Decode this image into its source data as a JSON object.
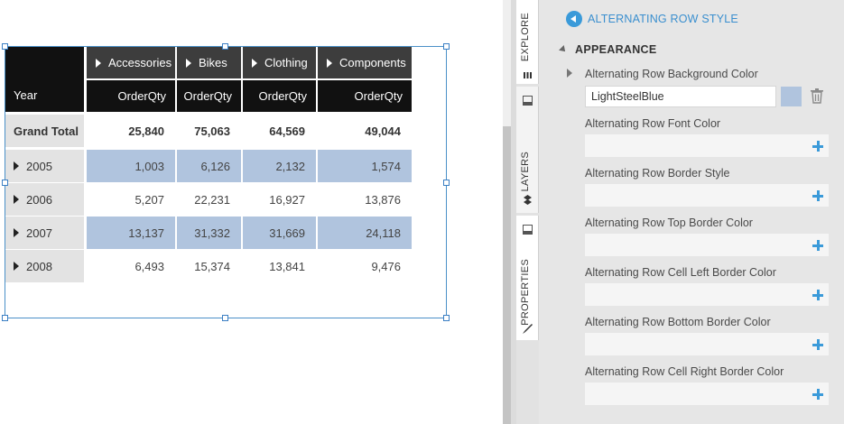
{
  "pivot": {
    "corner_label": "Year",
    "columns": [
      {
        "header": "Accessories",
        "measure": "OrderQty"
      },
      {
        "header": "Bikes",
        "measure": "OrderQty"
      },
      {
        "header": "Clothing",
        "measure": "OrderQty"
      },
      {
        "header": "Components",
        "measure": "OrderQty"
      }
    ],
    "rows": [
      {
        "label": "Grand Total",
        "values": [
          "25,840",
          "75,063",
          "64,569",
          "49,044"
        ],
        "bold": true,
        "alternate": false
      },
      {
        "label": "2005",
        "values": [
          "1,003",
          "6,126",
          "2,132",
          "1,574"
        ],
        "bold": false,
        "alternate": true
      },
      {
        "label": "2006",
        "values": [
          "5,207",
          "22,231",
          "16,927",
          "13,876"
        ],
        "bold": false,
        "alternate": false
      },
      {
        "label": "2007",
        "values": [
          "13,137",
          "31,332",
          "31,669",
          "24,118"
        ],
        "bold": false,
        "alternate": true
      },
      {
        "label": "2008",
        "values": [
          "6,493",
          "15,374",
          "13,841",
          "9,476"
        ],
        "bold": false,
        "alternate": false
      }
    ],
    "alternate_color": "#b0c4de"
  },
  "tabs": {
    "explore": "EXPLORE",
    "layers": "LAYERS",
    "properties": "PROPERTIES"
  },
  "panel": {
    "title": "ALTERNATING ROW STYLE",
    "section": "APPEARANCE",
    "properties": {
      "bg_color": {
        "label": "Alternating Row Background Color",
        "value": "LightSteelBlue",
        "swatch": "#b0c4de"
      },
      "font_color": {
        "label": "Alternating Row Font Color"
      },
      "border_style": {
        "label": "Alternating Row Border Style"
      },
      "top_border": {
        "label": "Alternating Row Top Border Color"
      },
      "left_border": {
        "label": "Alternating Row Cell Left Border Color"
      },
      "bottom_border": {
        "label": "Alternating Row Bottom Border Color"
      },
      "right_border": {
        "label": "Alternating Row Cell Right Border Color"
      }
    }
  },
  "colors": {
    "accent": "#3a9ad9",
    "header_black": "#111111",
    "header_dark": "#3d3d3d"
  }
}
